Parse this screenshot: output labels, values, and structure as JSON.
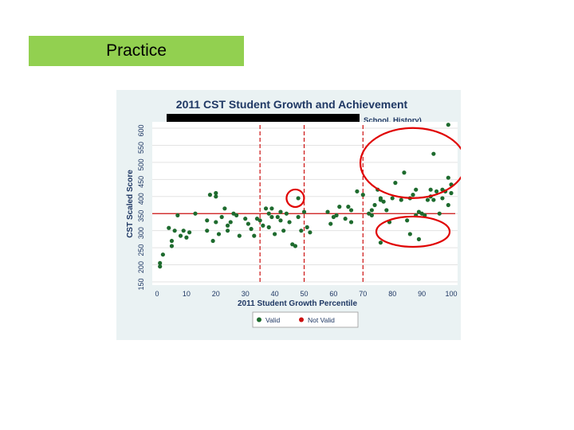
{
  "slide": {
    "badge_label": "Practice"
  },
  "colors": {
    "badge": "#92d050",
    "plot_bg": "#eaf2f3",
    "title": "#1f3864",
    "valid": "#1e6b2e",
    "not_valid": "#cc1111",
    "circle": "#e00000"
  },
  "chart_data": {
    "type": "scatter",
    "title": "2011 CST Student Growth and Achievement",
    "subtitle_visible": "School, History)",
    "xlabel": "2011 Student Growth Percentile",
    "ylabel": "CST Scaled Score",
    "xlim": [
      0,
      100
    ],
    "ylim": [
      150,
      600
    ],
    "xticks": [
      0,
      10,
      20,
      30,
      40,
      50,
      60,
      70,
      80,
      90,
      100
    ],
    "yticks": [
      150,
      200,
      250,
      300,
      350,
      400,
      450,
      500,
      550,
      600
    ],
    "grid": true,
    "vlines": [
      35,
      50,
      70
    ],
    "hline": 350,
    "legend": {
      "position": "bottom",
      "entries": [
        {
          "label": "Valid",
          "color": "#1e6b2e"
        },
        {
          "label": "Not Valid",
          "color": "#cc1111"
        }
      ]
    },
    "highlights": [
      {
        "shape": "circle",
        "cx": 47,
        "cy": 395
      },
      {
        "shape": "ellipse",
        "cx": 87,
        "cy": 498
      },
      {
        "shape": "ellipse",
        "cx": 87,
        "cy": 297
      }
    ],
    "series": [
      {
        "name": "Valid",
        "points": [
          [
            1,
            195
          ],
          [
            1,
            205
          ],
          [
            2,
            230
          ],
          [
            4,
            308
          ],
          [
            5,
            270
          ],
          [
            5,
            255
          ],
          [
            6,
            300
          ],
          [
            7,
            345
          ],
          [
            8,
            285
          ],
          [
            9,
            300
          ],
          [
            10,
            280
          ],
          [
            11,
            295
          ],
          [
            13,
            350
          ],
          [
            17,
            330
          ],
          [
            17,
            300
          ],
          [
            18,
            405
          ],
          [
            19,
            270
          ],
          [
            20,
            410
          ],
          [
            20,
            400
          ],
          [
            20,
            325
          ],
          [
            21,
            290
          ],
          [
            22,
            340
          ],
          [
            23,
            365
          ],
          [
            24,
            300
          ],
          [
            24,
            315
          ],
          [
            25,
            325
          ],
          [
            26,
            350
          ],
          [
            27,
            345
          ],
          [
            28,
            285
          ],
          [
            30,
            335
          ],
          [
            31,
            320
          ],
          [
            32,
            305
          ],
          [
            33,
            285
          ],
          [
            34,
            335
          ],
          [
            35,
            330
          ],
          [
            36,
            315
          ],
          [
            37,
            365
          ],
          [
            38,
            350
          ],
          [
            38,
            310
          ],
          [
            39,
            365
          ],
          [
            39,
            340
          ],
          [
            40,
            290
          ],
          [
            41,
            340
          ],
          [
            42,
            330
          ],
          [
            42,
            355
          ],
          [
            43,
            300
          ],
          [
            44,
            350
          ],
          [
            45,
            325
          ],
          [
            46,
            260
          ],
          [
            47,
            255
          ],
          [
            48,
            395
          ],
          [
            49,
            300
          ],
          [
            50,
            355
          ],
          [
            51,
            310
          ],
          [
            52,
            295
          ],
          [
            58,
            355
          ],
          [
            59,
            320
          ],
          [
            60,
            340
          ],
          [
            61,
            345
          ],
          [
            62,
            370
          ],
          [
            64,
            335
          ],
          [
            65,
            370
          ],
          [
            66,
            360
          ],
          [
            66,
            325
          ],
          [
            68,
            415
          ],
          [
            70,
            405
          ],
          [
            72,
            350
          ],
          [
            73,
            345
          ],
          [
            74,
            375
          ],
          [
            75,
            420
          ],
          [
            76,
            395
          ],
          [
            76,
            390
          ],
          [
            77,
            385
          ],
          [
            78,
            360
          ],
          [
            79,
            325
          ],
          [
            80,
            395
          ],
          [
            81,
            440
          ],
          [
            83,
            390
          ],
          [
            84,
            470
          ],
          [
            85,
            330
          ],
          [
            86,
            395
          ],
          [
            87,
            405
          ],
          [
            88,
            420
          ],
          [
            88,
            345
          ],
          [
            89,
            355
          ],
          [
            90,
            350
          ],
          [
            91,
            345
          ],
          [
            92,
            390
          ],
          [
            93,
            420
          ],
          [
            93,
            400
          ],
          [
            94,
            525
          ],
          [
            94,
            390
          ],
          [
            95,
            415
          ],
          [
            96,
            350
          ],
          [
            97,
            395
          ],
          [
            97,
            420
          ],
          [
            98,
            415
          ],
          [
            99,
            610
          ],
          [
            99,
            455
          ],
          [
            100,
            435
          ],
          [
            100,
            410
          ],
          [
            99,
            375
          ],
          [
            73,
            360
          ],
          [
            86,
            290
          ],
          [
            76,
            265
          ],
          [
            89,
            275
          ],
          [
            48,
            340
          ]
        ]
      }
    ]
  }
}
